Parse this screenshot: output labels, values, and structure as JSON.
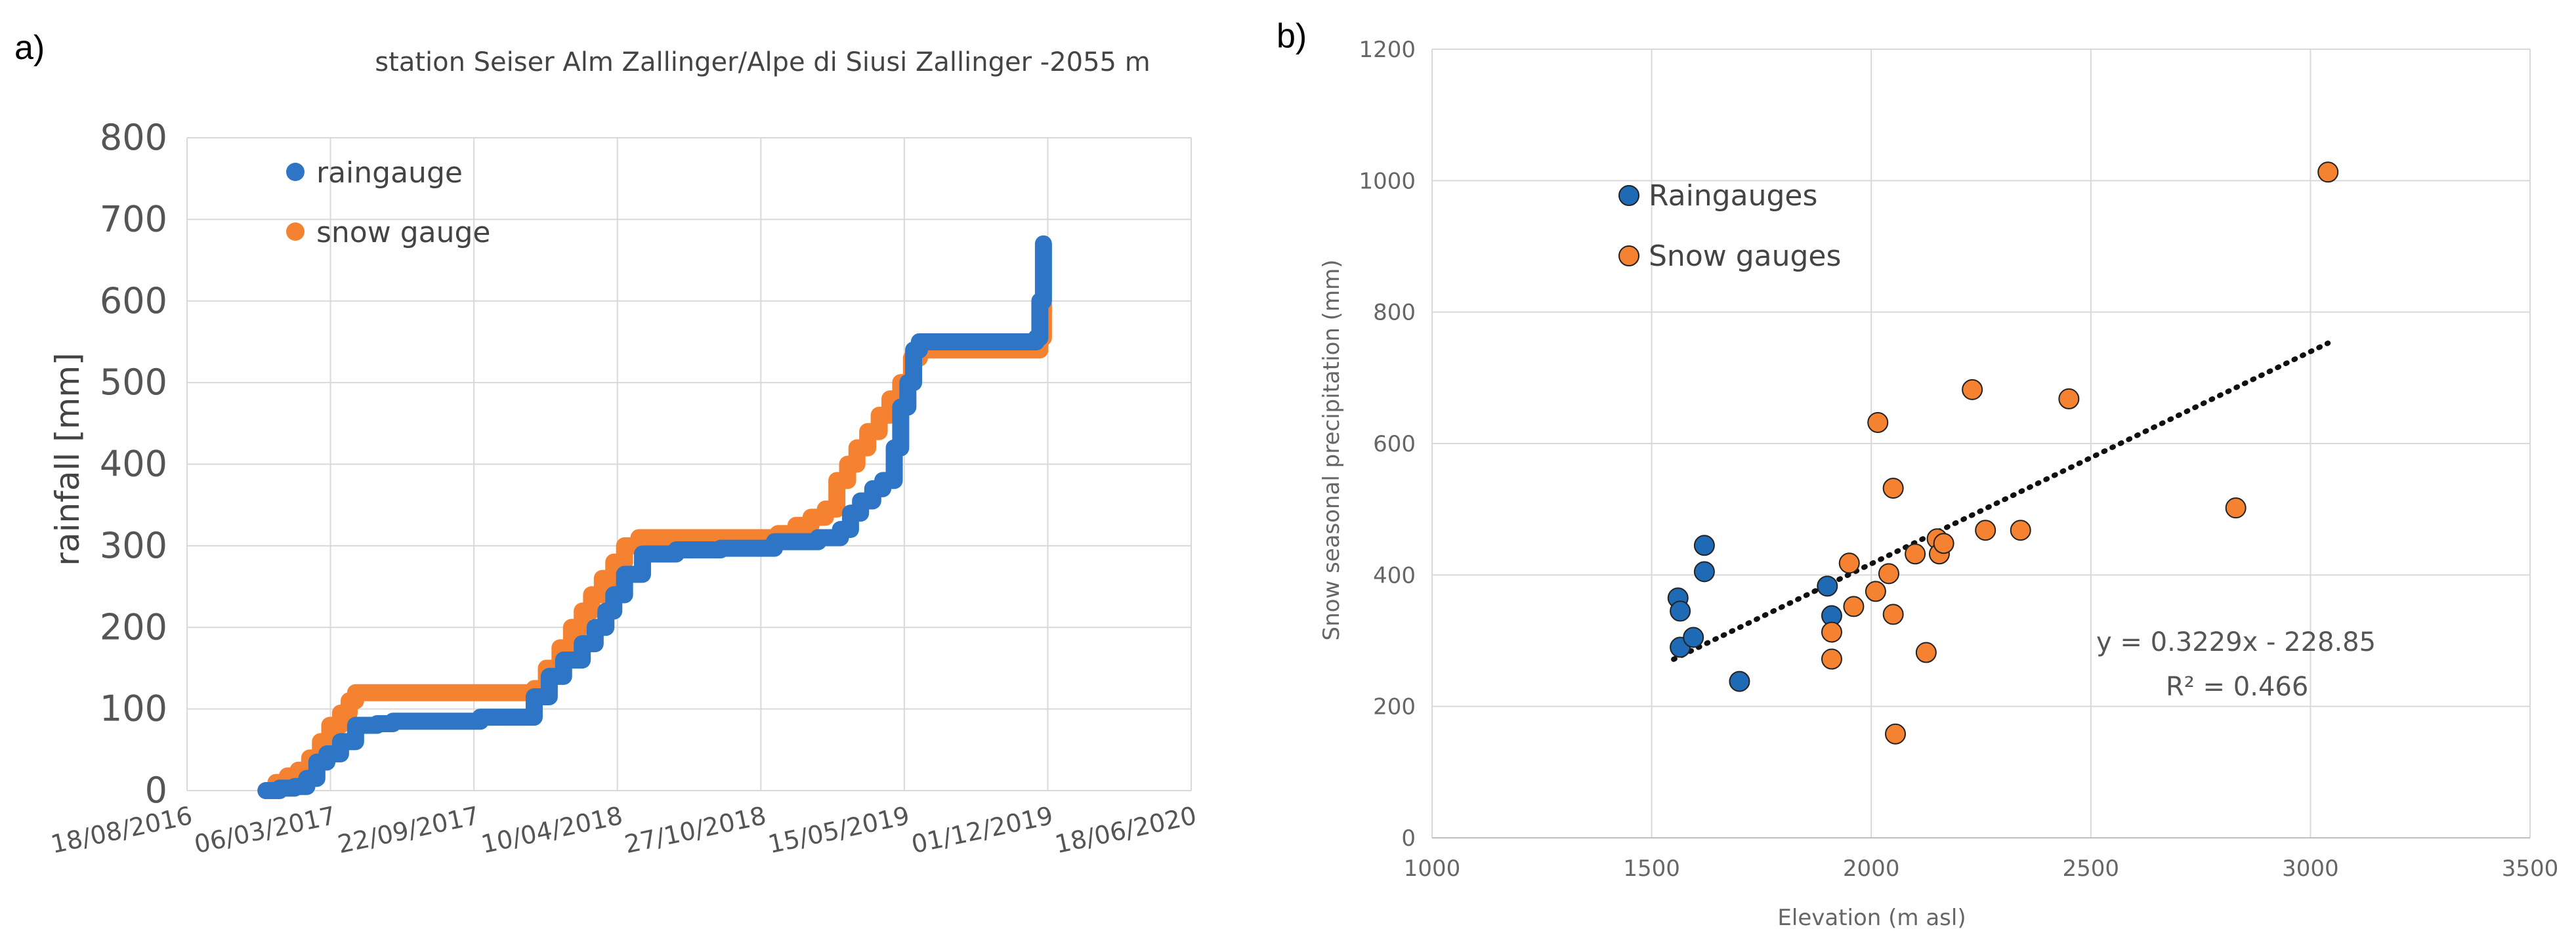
{
  "chart_data": [
    {
      "panel": "a)",
      "type": "line",
      "title": "station Seiser Alm Zallinger/Alpe di Siusi Zallinger -2055 m",
      "ylabel": "rainfall [mm]",
      "xlabel": "",
      "ylim": [
        0,
        800
      ],
      "yticks": [
        "0",
        "100",
        "200",
        "300",
        "400",
        "500",
        "600",
        "700",
        "800"
      ],
      "xlim": [
        "18/08/2016",
        "18/06/2020"
      ],
      "xticks": [
        "18/08/2016",
        "06/03/2017",
        "22/09/2017",
        "10/04/2018",
        "27/10/2018",
        "15/05/2019",
        "01/12/2019",
        "18/06/2020"
      ],
      "grid": true,
      "legend": "top-left",
      "series": [
        {
          "name": "raingauge",
          "color": "#2e75c5",
          "x": [
            "2016-12-06",
            "2016-12-25",
            "2017-01-15",
            "2017-02-01",
            "2017-02-15",
            "2017-03-01",
            "2017-03-20",
            "2017-04-10",
            "2017-05-10",
            "2017-06-01",
            "2017-06-25",
            "2017-10-01",
            "2017-12-15",
            "2018-01-05",
            "2018-01-25",
            "2018-02-20",
            "2018-03-10",
            "2018-03-25",
            "2018-04-05",
            "2018-04-20",
            "2018-05-15",
            "2018-07-01",
            "2018-09-01",
            "2018-11-15",
            "2019-01-15",
            "2019-02-15",
            "2019-03-01",
            "2019-03-15",
            "2019-04-01",
            "2019-04-15",
            "2019-05-01",
            "2019-05-10",
            "2019-05-20",
            "2019-05-28",
            "2019-06-05",
            "2019-11-15",
            "2019-11-20",
            "2019-11-25"
          ],
          "y": [
            0,
            3,
            5,
            15,
            35,
            45,
            60,
            80,
            82,
            85,
            85,
            90,
            115,
            140,
            160,
            180,
            200,
            220,
            240,
            265,
            290,
            295,
            297,
            305,
            310,
            320,
            340,
            355,
            370,
            380,
            420,
            470,
            500,
            540,
            550,
            555,
            600,
            670
          ]
        },
        {
          "name": "snow gauge",
          "color": "#f58231",
          "x": [
            "2016-12-06",
            "2016-12-20",
            "2017-01-05",
            "2017-01-20",
            "2017-02-05",
            "2017-02-20",
            "2017-03-05",
            "2017-03-20",
            "2017-04-01",
            "2017-04-10",
            "2017-12-15",
            "2018-01-01",
            "2018-01-20",
            "2018-02-05",
            "2018-02-20",
            "2018-03-05",
            "2018-03-20",
            "2018-04-05",
            "2018-04-20",
            "2018-05-10",
            "2018-08-01",
            "2018-11-20",
            "2018-12-15",
            "2019-01-05",
            "2019-01-25",
            "2019-02-10",
            "2019-02-25",
            "2019-03-10",
            "2019-03-25",
            "2019-04-10",
            "2019-04-25",
            "2019-05-10",
            "2019-05-25",
            "2019-06-05",
            "2019-11-15",
            "2019-11-20",
            "2019-11-25"
          ],
          "y": [
            0,
            10,
            18,
            25,
            40,
            60,
            80,
            95,
            110,
            120,
            125,
            150,
            175,
            200,
            220,
            240,
            260,
            280,
            300,
            310,
            310,
            315,
            325,
            335,
            345,
            380,
            400,
            420,
            440,
            460,
            480,
            500,
            530,
            540,
            540,
            555,
            595
          ]
        }
      ]
    },
    {
      "panel": "b)",
      "type": "scatter",
      "xlabel": "Elevation (m asl)",
      "ylabel": "Snow seasonal precipitation (mm)",
      "xlim": [
        1000,
        3500
      ],
      "ylim": [
        0,
        1200
      ],
      "xticks": [
        "1000",
        "1500",
        "2000",
        "2500",
        "3000",
        "3500"
      ],
      "yticks": [
        "0",
        "200",
        "400",
        "600",
        "800",
        "1000",
        "1200"
      ],
      "grid": true,
      "legend": "top-left",
      "series": [
        {
          "name": "Raingauges",
          "color": "#1f6ab5",
          "points": [
            [
              1560,
              365
            ],
            [
              1565,
              345
            ],
            [
              1565,
              290
            ],
            [
              1595,
              305
            ],
            [
              1620,
              445
            ],
            [
              1620,
              405
            ],
            [
              1700,
              238
            ],
            [
              1900,
              383
            ],
            [
              1910,
              338
            ]
          ]
        },
        {
          "name": "Snow gauges",
          "color": "#f58231",
          "points": [
            [
              1910,
              313
            ],
            [
              1910,
              272
            ],
            [
              1950,
              418
            ],
            [
              1960,
              352
            ],
            [
              2010,
              375
            ],
            [
              2015,
              632
            ],
            [
              2040,
              402
            ],
            [
              2050,
              532
            ],
            [
              2050,
              340
            ],
            [
              2055,
              158
            ],
            [
              2100,
              432
            ],
            [
              2125,
              282
            ],
            [
              2150,
              455
            ],
            [
              2155,
              432
            ],
            [
              2165,
              448
            ],
            [
              2230,
              682
            ],
            [
              2260,
              468
            ],
            [
              2340,
              468
            ],
            [
              2450,
              668
            ],
            [
              2830,
              502
            ],
            [
              3040,
              1013
            ]
          ]
        }
      ],
      "trendline": {
        "equation": "y = 0.3229x - 228.85",
        "r2_text": "R² = 0.466",
        "slope": 0.3229,
        "intercept": -228.85,
        "x_range": [
          1550,
          3040
        ]
      }
    }
  ]
}
